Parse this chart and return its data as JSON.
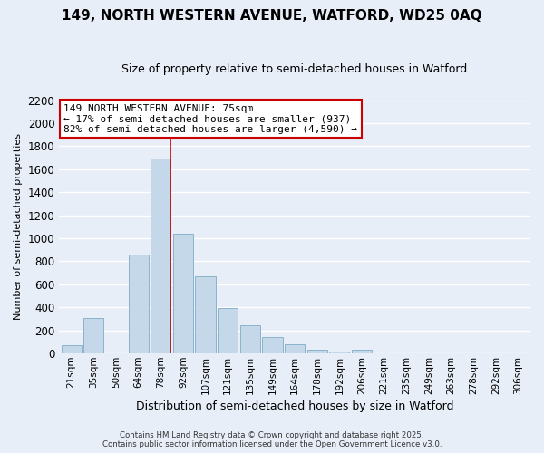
{
  "title": "149, NORTH WESTERN AVENUE, WATFORD, WD25 0AQ",
  "subtitle": "Size of property relative to semi-detached houses in Watford",
  "xlabel": "Distribution of semi-detached houses by size in Watford",
  "ylabel": "Number of semi-detached properties",
  "categories": [
    "21sqm",
    "35sqm",
    "50sqm",
    "64sqm",
    "78sqm",
    "92sqm",
    "107sqm",
    "121sqm",
    "135sqm",
    "149sqm",
    "164sqm",
    "178sqm",
    "192sqm",
    "206sqm",
    "221sqm",
    "235sqm",
    "249sqm",
    "263sqm",
    "278sqm",
    "292sqm",
    "306sqm"
  ],
  "values": [
    75,
    310,
    0,
    860,
    1690,
    1040,
    670,
    395,
    245,
    140,
    80,
    35,
    20,
    30,
    0,
    0,
    0,
    0,
    0,
    0,
    0
  ],
  "bar_color": "#c5d8ea",
  "bar_edgecolor": "#8ab4cc",
  "vline_color": "#cc0000",
  "annotation_title": "149 NORTH WESTERN AVENUE: 75sqm",
  "annotation_line1": "← 17% of semi-detached houses are smaller (937)",
  "annotation_line2": "82% of semi-detached houses are larger (4,590) →",
  "annotation_box_edgecolor": "#cc0000",
  "ylim": [
    0,
    2200
  ],
  "yticks": [
    0,
    200,
    400,
    600,
    800,
    1000,
    1200,
    1400,
    1600,
    1800,
    2000,
    2200
  ],
  "footer1": "Contains HM Land Registry data © Crown copyright and database right 2025.",
  "footer2": "Contains public sector information licensed under the Open Government Licence v3.0.",
  "background_color": "#e8eef8",
  "grid_color": "#ffffff",
  "title_fontsize": 11,
  "subtitle_fontsize": 9
}
